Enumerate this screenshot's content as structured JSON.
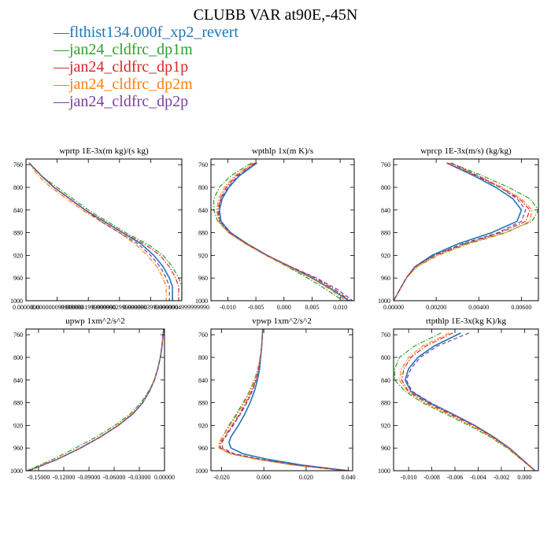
{
  "title": "CLUBB VAR at90E,-45N",
  "colors": [
    "#1f77b4",
    "#2ca02c",
    "#d62728",
    "#ff7f0e",
    "#7b3fa0"
  ],
  "legend": [
    {
      "name": "flthist134.000f_xp2_revert",
      "color": "#1f77b4",
      "style": "solid"
    },
    {
      "name": "jan24_cldfrc_dp1m",
      "color": "#2ca02c",
      "style": "dashdot"
    },
    {
      "name": "jan24_cldfrc_dp1p",
      "color": "#d62728",
      "style": "dashdot"
    },
    {
      "name": "jan24_cldfrc_dp2m",
      "color": "#ff7f0e",
      "style": "dashdot"
    },
    {
      "name": "jan24_cldfrc_dp2p",
      "color": "#7b3fa0",
      "style": "dashed"
    }
  ],
  "chart_data": [
    {
      "type": "line",
      "title": "wprtp  1E-3x(m kg)/(s kg)",
      "xlim": [
        0.0,
        5e-07
      ],
      "xticks": [
        0.0,
        1e-07,
        2e-07,
        3e-07,
        4e-07,
        5e-07
      ],
      "xticklabels": [
        "0.0000000",
        "0.000000099999990",
        "0.0000001999999990",
        "0.0000002999999990",
        "0.0000003999999990",
        "0.0000004999999990"
      ],
      "ylim": [
        1000,
        750
      ],
      "yticks": [
        760,
        800,
        840,
        880,
        920,
        960,
        1000
      ],
      "yticklabels": [
        "760",
        "800",
        "840",
        "880",
        "920",
        "960",
        "1000"
      ],
      "y": [
        757,
        780,
        800,
        820,
        840,
        860,
        880,
        900,
        920,
        940,
        960,
        975,
        990,
        1000
      ],
      "series": [
        {
          "name": "flthist134.000f_xp2_revert",
          "values": [
            1e-08,
            5e-08,
            9e-08,
            1.4e-07,
            1.9e-07,
            2.5e-07,
            3.1e-07,
            3.7e-07,
            4.1e-07,
            4.4e-07,
            4.6e-07,
            4.7e-07,
            4.7e-07,
            4.7e-07
          ]
        },
        {
          "name": "jan24_cldfrc_dp1m",
          "values": [
            1e-08,
            5e-08,
            1e-07,
            1.5e-07,
            2e-07,
            2.6e-07,
            3.2e-07,
            3.9e-07,
            4.4e-07,
            4.7e-07,
            4.9e-07,
            5e-07,
            5e-07,
            5e-07
          ]
        },
        {
          "name": "jan24_cldfrc_dp1p",
          "values": [
            1e-08,
            5e-08,
            9e-08,
            1.4e-07,
            1.9e-07,
            2.5e-07,
            3.1e-07,
            3.8e-07,
            4.3e-07,
            4.6e-07,
            4.8e-07,
            4.9e-07,
            4.9e-07,
            4.9e-07
          ]
        },
        {
          "name": "jan24_cldfrc_dp2m",
          "values": [
            1e-08,
            4e-08,
            8e-08,
            1.3e-07,
            1.8e-07,
            2.4e-07,
            3e-07,
            3.5e-07,
            3.9e-07,
            4.2e-07,
            4.4e-07,
            4.5e-07,
            4.5e-07,
            4.5e-07
          ]
        },
        {
          "name": "jan24_cldfrc_dp2p",
          "values": [
            1e-08,
            5e-08,
            9e-08,
            1.4e-07,
            1.9e-07,
            2.4e-07,
            3e-07,
            3.6e-07,
            4e-07,
            4.3e-07,
            4.5e-07,
            4.6e-07,
            4.6e-07,
            4.6e-07
          ]
        }
      ]
    },
    {
      "type": "line",
      "title": "wpthlp  1x(m K)/s",
      "xlim": [
        -0.013,
        0.0125
      ],
      "xticks": [
        -0.01,
        -0.005,
        0.0,
        0.005,
        0.01
      ],
      "xticklabels": [
        "-0.010",
        "-0.005",
        "0.000",
        "0.005",
        "0.010"
      ],
      "ylim": [
        1000,
        750
      ],
      "yticks": [
        760,
        800,
        840,
        880,
        920,
        960,
        1000
      ],
      "yticklabels": [
        "760",
        "800",
        "840",
        "880",
        "920",
        "960",
        "1000"
      ],
      "y": [
        757,
        780,
        800,
        820,
        840,
        860,
        880,
        900,
        920,
        940,
        960,
        980,
        1000
      ],
      "series": [
        {
          "name": "flthist134.000f_xp2_revert",
          "values": [
            -0.0048,
            -0.008,
            -0.0098,
            -0.011,
            -0.0115,
            -0.0112,
            -0.0095,
            -0.0065,
            -0.003,
            0.001,
            0.005,
            0.0085,
            0.0115
          ]
        },
        {
          "name": "jan24_cldfrc_dp1m",
          "values": [
            -0.0058,
            -0.0095,
            -0.0115,
            -0.0125,
            -0.0125,
            -0.0118,
            -0.0098,
            -0.0068,
            -0.0032,
            0.0006,
            0.0042,
            0.0075,
            0.0105
          ]
        },
        {
          "name": "jan24_cldfrc_dp1p",
          "values": [
            -0.0052,
            -0.0085,
            -0.0103,
            -0.0113,
            -0.0118,
            -0.0115,
            -0.0098,
            -0.0066,
            -0.003,
            0.0012,
            0.0055,
            0.009,
            0.0118
          ]
        },
        {
          "name": "jan24_cldfrc_dp2m",
          "values": [
            -0.0055,
            -0.0088,
            -0.0106,
            -0.0116,
            -0.012,
            -0.0116,
            -0.0099,
            -0.0068,
            -0.0032,
            0.0008,
            0.0048,
            0.0082,
            0.011
          ]
        },
        {
          "name": "jan24_cldfrc_dp2p",
          "values": [
            -0.005,
            -0.0082,
            -0.01,
            -0.0112,
            -0.0116,
            -0.0114,
            -0.0096,
            -0.0065,
            -0.003,
            0.0012,
            0.0058,
            0.0095,
            0.0122
          ]
        }
      ]
    },
    {
      "type": "line",
      "title": "wprcp  1E-3x(m/s) (kg/kg)",
      "xlim": [
        0.0,
        0.0068
      ],
      "xticks": [
        0.0,
        0.002,
        0.004,
        0.006
      ],
      "xticklabels": [
        "0.00000",
        "0.00200",
        "0.00400",
        "0.00600"
      ],
      "ylim": [
        1000,
        750
      ],
      "yticks": [
        760,
        800,
        840,
        880,
        920,
        960,
        1000
      ],
      "yticklabels": [
        "760",
        "800",
        "840",
        "880",
        "920",
        "960",
        "1000"
      ],
      "y": [
        757,
        780,
        800,
        820,
        840,
        860,
        880,
        900,
        920,
        940,
        960,
        980,
        1000
      ],
      "series": [
        {
          "name": "flthist134.000f_xp2_revert",
          "values": [
            0.0025,
            0.0038,
            0.0048,
            0.0056,
            0.006,
            0.0058,
            0.0046,
            0.003,
            0.0018,
            0.001,
            0.0006,
            0.0003,
            0.0
          ]
        },
        {
          "name": "jan24_cldfrc_dp1m",
          "values": [
            0.0027,
            0.0042,
            0.0054,
            0.0064,
            0.0068,
            0.0065,
            0.0052,
            0.0034,
            0.002,
            0.0011,
            0.0006,
            0.0003,
            0.0
          ]
        },
        {
          "name": "jan24_cldfrc_dp1p",
          "values": [
            0.0025,
            0.0039,
            0.005,
            0.0059,
            0.0064,
            0.0062,
            0.005,
            0.0033,
            0.0019,
            0.001,
            0.0006,
            0.0003,
            0.0
          ]
        },
        {
          "name": "jan24_cldfrc_dp2m",
          "values": [
            0.0026,
            0.004,
            0.0051,
            0.006,
            0.0065,
            0.0064,
            0.0053,
            0.0035,
            0.0021,
            0.0011,
            0.0006,
            0.0003,
            0.0
          ]
        },
        {
          "name": "jan24_cldfrc_dp2p",
          "values": [
            0.0027,
            0.004,
            0.005,
            0.0058,
            0.0062,
            0.006,
            0.0049,
            0.0032,
            0.0019,
            0.001,
            0.0006,
            0.0003,
            0.0
          ]
        }
      ]
    },
    {
      "type": "line",
      "title": "upwp  1xm^2/s^2",
      "xlim": [
        -0.165,
        0.0
      ],
      "xticks": [
        -0.15,
        -0.12,
        -0.09,
        -0.06,
        -0.03,
        0.0
      ],
      "xticklabels": [
        "-0.15000",
        "-0.12000",
        "-0.09000",
        "-0.06000",
        "-0.03000",
        "0.00000"
      ],
      "ylim": [
        1000,
        750
      ],
      "yticks": [
        760,
        800,
        840,
        880,
        920,
        960,
        1000
      ],
      "yticklabels": [
        "760",
        "800",
        "840",
        "880",
        "920",
        "960",
        "1000"
      ],
      "y": [
        750,
        780,
        800,
        820,
        840,
        860,
        880,
        900,
        920,
        940,
        960,
        980,
        1000
      ],
      "series": [
        {
          "name": "flthist134.000f_xp2_revert",
          "values": [
            -0.001,
            -0.003,
            -0.005,
            -0.008,
            -0.012,
            -0.018,
            -0.026,
            -0.038,
            -0.055,
            -0.076,
            -0.1,
            -0.128,
            -0.162
          ]
        },
        {
          "name": "jan24_cldfrc_dp1m",
          "values": [
            -0.001,
            -0.003,
            -0.005,
            -0.008,
            -0.012,
            -0.019,
            -0.028,
            -0.041,
            -0.059,
            -0.081,
            -0.106,
            -0.133,
            -0.164
          ]
        },
        {
          "name": "jan24_cldfrc_dp1p",
          "values": [
            -0.001,
            -0.003,
            -0.005,
            -0.008,
            -0.012,
            -0.018,
            -0.026,
            -0.038,
            -0.055,
            -0.076,
            -0.1,
            -0.128,
            -0.162
          ]
        },
        {
          "name": "jan24_cldfrc_dp2m",
          "values": [
            -0.001,
            -0.003,
            -0.005,
            -0.008,
            -0.012,
            -0.018,
            -0.026,
            -0.039,
            -0.056,
            -0.077,
            -0.101,
            -0.129,
            -0.162
          ]
        },
        {
          "name": "jan24_cldfrc_dp2p",
          "values": [
            -0.001,
            -0.003,
            -0.005,
            -0.008,
            -0.012,
            -0.018,
            -0.026,
            -0.038,
            -0.055,
            -0.076,
            -0.1,
            -0.128,
            -0.162
          ]
        }
      ]
    },
    {
      "type": "line",
      "title": "vpwp  1xm^2/s^2",
      "xlim": [
        -0.025,
        0.042
      ],
      "xticks": [
        -0.02,
        0.0,
        0.02,
        0.04
      ],
      "xticklabels": [
        "-0.020",
        "0.000",
        "0.020",
        "0.040"
      ],
      "ylim": [
        1000,
        750
      ],
      "yticks": [
        760,
        800,
        840,
        880,
        920,
        960,
        1000
      ],
      "yticklabels": [
        "760",
        "800",
        "840",
        "880",
        "920",
        "960",
        "1000"
      ],
      "y": [
        750,
        780,
        800,
        820,
        840,
        860,
        880,
        900,
        920,
        940,
        950,
        960,
        970,
        980,
        990,
        1000
      ],
      "series": [
        {
          "name": "flthist134.000f_xp2_revert",
          "values": [
            -0.0005,
            -0.001,
            -0.0015,
            -0.002,
            -0.003,
            -0.0045,
            -0.0065,
            -0.009,
            -0.012,
            -0.0155,
            -0.0165,
            -0.0155,
            -0.01,
            0.002,
            0.018,
            0.04
          ]
        },
        {
          "name": "jan24_cldfrc_dp1m",
          "values": [
            -0.0005,
            -0.001,
            -0.0018,
            -0.0028,
            -0.0045,
            -0.0068,
            -0.0098,
            -0.013,
            -0.0165,
            -0.0195,
            -0.021,
            -0.021,
            -0.016,
            -0.003,
            0.014,
            0.038
          ]
        },
        {
          "name": "jan24_cldfrc_dp1p",
          "values": [
            -0.0005,
            -0.001,
            -0.0016,
            -0.0025,
            -0.0038,
            -0.0058,
            -0.0085,
            -0.0115,
            -0.015,
            -0.0185,
            -0.0205,
            -0.0205,
            -0.015,
            -0.002,
            0.015,
            0.039
          ]
        },
        {
          "name": "jan24_cldfrc_dp2m",
          "values": [
            -0.0005,
            -0.001,
            -0.0017,
            -0.0027,
            -0.0042,
            -0.0065,
            -0.0093,
            -0.0125,
            -0.016,
            -0.0195,
            -0.0212,
            -0.0212,
            -0.016,
            -0.003,
            0.014,
            0.038
          ]
        },
        {
          "name": "jan24_cldfrc_dp2p",
          "values": [
            -0.0005,
            -0.001,
            -0.0016,
            -0.0024,
            -0.0036,
            -0.0055,
            -0.008,
            -0.011,
            -0.0145,
            -0.018,
            -0.0198,
            -0.0195,
            -0.014,
            -0.001,
            0.016,
            0.04
          ]
        }
      ]
    },
    {
      "type": "line",
      "title": "rtpthlp  1E-3x(kg K)/kg",
      "xlim": [
        -0.0113,
        0.0012
      ],
      "xticks": [
        -0.01,
        -0.008,
        -0.006,
        -0.004,
        -0.002,
        0.0
      ],
      "xticklabels": [
        "-0.010",
        "-0.008",
        "-0.006",
        "-0.004",
        "-0.002",
        "0.000"
      ],
      "ylim": [
        1000,
        750
      ],
      "yticks": [
        760,
        800,
        840,
        880,
        920,
        960,
        1000
      ],
      "yticklabels": [
        "760",
        "800",
        "840",
        "880",
        "920",
        "960",
        "1000"
      ],
      "y": [
        757,
        780,
        800,
        820,
        840,
        860,
        880,
        900,
        920,
        940,
        960,
        980,
        1000
      ],
      "series": [
        {
          "name": "flthist134.000f_xp2_revert",
          "values": [
            -0.0055,
            -0.0078,
            -0.0092,
            -0.01,
            -0.0103,
            -0.0098,
            -0.0082,
            -0.0062,
            -0.0043,
            -0.0027,
            -0.0013,
            -0.0002,
            0.0009
          ]
        },
        {
          "name": "jan24_cldfrc_dp1m",
          "values": [
            -0.0072,
            -0.0095,
            -0.0108,
            -0.0112,
            -0.0112,
            -0.0103,
            -0.0088,
            -0.0068,
            -0.0048,
            -0.003,
            -0.0015,
            -0.0003,
            0.0009
          ]
        },
        {
          "name": "jan24_cldfrc_dp1p",
          "values": [
            -0.0062,
            -0.0085,
            -0.0098,
            -0.0104,
            -0.0106,
            -0.01,
            -0.0084,
            -0.0064,
            -0.0044,
            -0.0028,
            -0.0014,
            -0.0002,
            0.0009
          ]
        },
        {
          "name": "jan24_cldfrc_dp2m",
          "values": [
            -0.0065,
            -0.0088,
            -0.01,
            -0.0106,
            -0.0108,
            -0.0101,
            -0.0086,
            -0.0066,
            -0.0046,
            -0.0029,
            -0.0014,
            -0.0003,
            0.0009
          ]
        },
        {
          "name": "jan24_cldfrc_dp2p",
          "values": [
            -0.0048,
            -0.0075,
            -0.009,
            -0.0098,
            -0.0102,
            -0.0097,
            -0.0081,
            -0.0062,
            -0.0043,
            -0.0027,
            -0.0013,
            -0.0002,
            0.0009
          ]
        }
      ]
    }
  ]
}
